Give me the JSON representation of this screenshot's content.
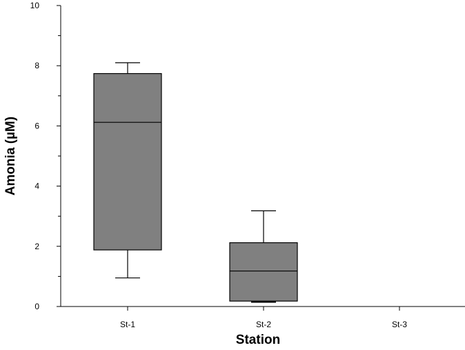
{
  "chart_data": {
    "type": "box",
    "xlabel": "Station",
    "ylabel": "Amonia (µM)",
    "ylim": [
      0,
      10
    ],
    "yticks": [
      "0",
      "2",
      "4",
      "6",
      "8",
      "10"
    ],
    "categories": [
      "St-1",
      "St-2",
      "St-3"
    ],
    "boxes": [
      {
        "category": "St-1",
        "min": 0.95,
        "q1": 1.88,
        "median": 6.12,
        "q3": 7.74,
        "max": 8.1
      },
      {
        "category": "St-2",
        "min": 0.15,
        "q1": 0.18,
        "median": 1.18,
        "q3": 2.12,
        "max": 3.18
      },
      {
        "category": "St-3",
        "min": null,
        "q1": null,
        "median": null,
        "q3": null,
        "max": null
      }
    ],
    "box_color": "#808080",
    "grid": false,
    "legend": "none"
  }
}
